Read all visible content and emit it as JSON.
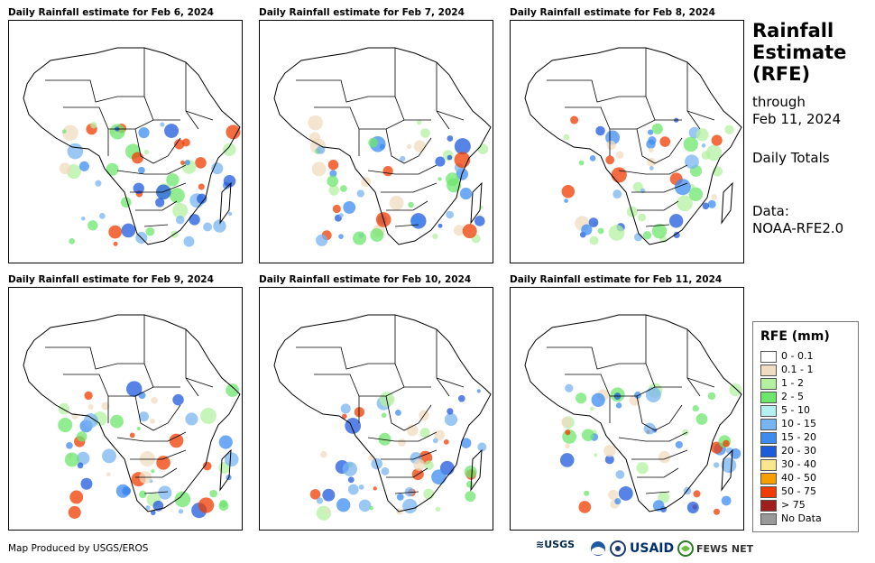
{
  "panels": [
    {
      "title": "Daily Rainfall estimate for Feb 6, 2024"
    },
    {
      "title": "Daily Rainfall estimate for Feb 7, 2024"
    },
    {
      "title": "Daily Rainfall estimate for Feb 8, 2024"
    },
    {
      "title": "Daily Rainfall estimate for Feb 9, 2024"
    },
    {
      "title": "Daily Rainfall estimate for Feb 10, 2024"
    },
    {
      "title": "Daily Rainfall estimate for Feb 11, 2024"
    }
  ],
  "side": {
    "title_line1": "Rainfall",
    "title_line2": "Estimate",
    "title_line3": "(RFE)",
    "through_label": "through",
    "through_date": "Feb 11, 2024",
    "totals_label": "Daily Totals",
    "data_label": "Data:",
    "data_source": "NOAA-RFE2.0"
  },
  "legend": {
    "title": "RFE (mm)",
    "items": [
      {
        "label": "0 - 0.1",
        "color": "#ffffff"
      },
      {
        "label": "0.1 - 1",
        "color": "#f0dcc0"
      },
      {
        "label": "1 - 2",
        "color": "#b4f0a0"
      },
      {
        "label": "2 - 5",
        "color": "#6ee66e"
      },
      {
        "label": "5 - 10",
        "color": "#b4f0f0"
      },
      {
        "label": "10 - 15",
        "color": "#78b4f0"
      },
      {
        "label": "15 - 20",
        "color": "#3c8cf0"
      },
      {
        "label": "20 - 30",
        "color": "#1e5adc"
      },
      {
        "label": "30 - 40",
        "color": "#fae68c"
      },
      {
        "label": "40 - 50",
        "color": "#f5a000"
      },
      {
        "label": "50 - 75",
        "color": "#f03c00"
      },
      {
        "label": "> 75",
        "color": "#a01e1e"
      },
      {
        "label": "No Data",
        "color": "#999999"
      }
    ]
  },
  "footer": {
    "credit": "Map Produced by USGS/EROS",
    "logo_usgs": "≋USGS",
    "logo_usaid": "USAID",
    "logo_fewsnet": "FEWS NET"
  }
}
